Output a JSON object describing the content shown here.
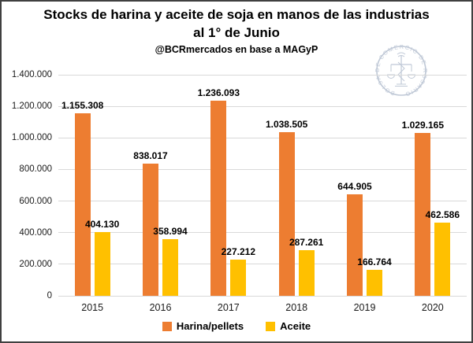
{
  "page": {
    "background": "#ffffff",
    "border_color": "#404040"
  },
  "header": {
    "title": "Stocks de harina y aceite de soja en manos de las industrias al 1° de Junio",
    "subtitle": "@BCRmercados en base a MAGyP"
  },
  "watermark": {
    "text": "BOLSA DE COMERCIO DE ROSARIO",
    "symbol": "scales-caduceus-seal",
    "color": "#aab6c9"
  },
  "chart_data": {
    "type": "bar",
    "title": "Stocks de harina y aceite de soja en manos de las industrias al 1° de Junio",
    "subtitle": "@BCRmercados en base a MAGyP",
    "xlabel": "",
    "ylabel": "",
    "categories": [
      "2015",
      "2016",
      "2017",
      "2018",
      "2019",
      "2020"
    ],
    "series": [
      {
        "name": "Harina/pellets",
        "color": "#ED7D31",
        "values": [
          1155308,
          838017,
          1236093,
          1038505,
          644905,
          1029165
        ],
        "labels": [
          "1.155.308",
          "838.017",
          "1.236.093",
          "1.038.505",
          "644.905",
          "1.029.165"
        ]
      },
      {
        "name": "Aceite",
        "color": "#FFC000",
        "values": [
          404130,
          358994,
          227212,
          287261,
          166764,
          462586
        ],
        "labels": [
          "404.130",
          "358.994",
          "227.212",
          "287.261",
          "166.764",
          "462.586"
        ]
      }
    ],
    "ylim": [
      0,
      1400000
    ],
    "ytick_interval": 200000,
    "ytick_labels": [
      "0",
      "200.000",
      "400.000",
      "600.000",
      "800.000",
      "1.000.000",
      "1.200.000",
      "1.400.000"
    ],
    "grid": true,
    "gridline_color": "#d9d9d9",
    "legend_position": "bottom"
  }
}
